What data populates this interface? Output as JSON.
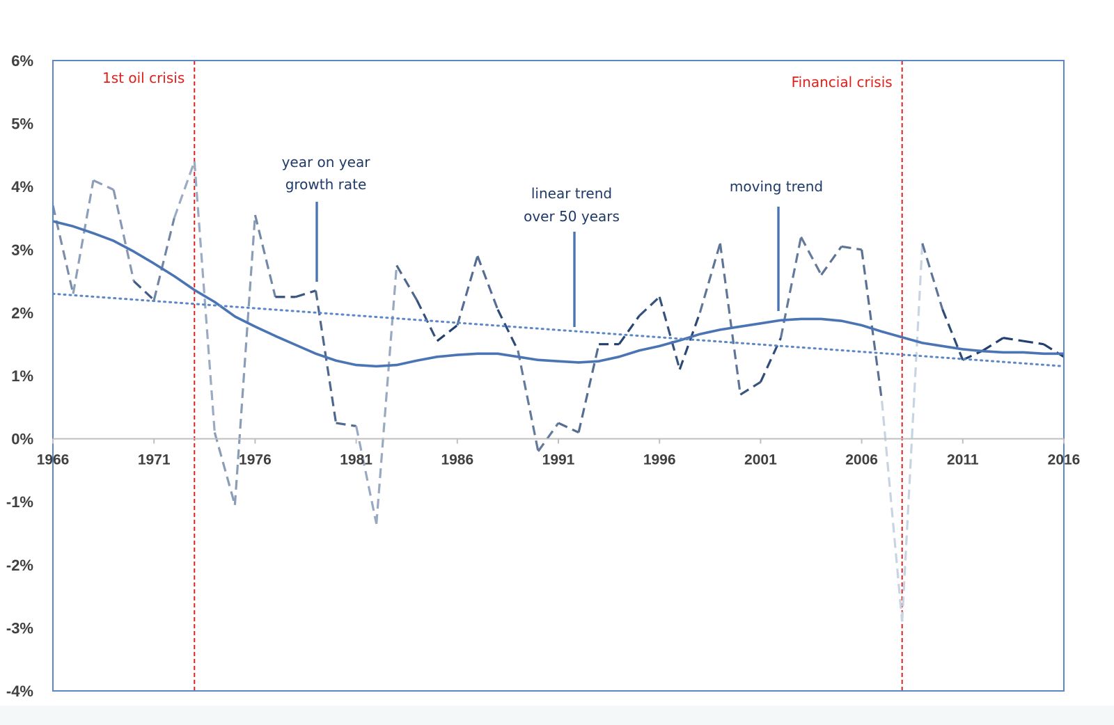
{
  "chart_data": {
    "type": "line",
    "title": "",
    "xlabel": "",
    "ylabel": "",
    "xlim": [
      1966,
      2016
    ],
    "ylim": [
      -4,
      6
    ],
    "x_ticks": [
      "1966",
      "1971",
      "1976",
      "1981",
      "1986",
      "1991",
      "1996",
      "2001",
      "2006",
      "2011",
      "2016"
    ],
    "y_ticks": [
      "6%",
      "5%",
      "4%",
      "3%",
      "2%",
      "1%",
      "0%",
      "-1%",
      "-2%",
      "-3%",
      "-4%"
    ],
    "series": [
      {
        "name": "year on year growth rate",
        "style": "dashed, color graded from light to dark",
        "x": [
          1966,
          1967,
          1968,
          1969,
          1970,
          1971,
          1972,
          1973,
          1974,
          1975,
          1976,
          1977,
          1978,
          1979,
          1980,
          1981,
          1982,
          1983,
          1984,
          1985,
          1986,
          1987,
          1988,
          1989,
          1990,
          1991,
          1992,
          1993,
          1994,
          1995,
          1996,
          1997,
          1998,
          1999,
          2000,
          2001,
          2002,
          2003,
          2004,
          2005,
          2006,
          2007,
          2008,
          2009,
          2010,
          2011,
          2012,
          2013,
          2014,
          2015,
          2016
        ],
        "y": [
          3.7,
          2.3,
          4.1,
          3.95,
          2.5,
          2.2,
          3.5,
          4.4,
          0.1,
          -1.05,
          3.55,
          2.25,
          2.25,
          2.35,
          0.25,
          0.2,
          -1.35,
          2.75,
          2.2,
          1.55,
          1.8,
          2.9,
          2.05,
          1.4,
          -0.2,
          0.25,
          0.1,
          1.5,
          1.5,
          1.95,
          2.25,
          1.1,
          2.0,
          3.1,
          0.7,
          0.9,
          1.6,
          3.2,
          2.6,
          3.05,
          3.0,
          0.6,
          -2.9,
          3.1,
          2.05,
          1.25,
          1.4,
          1.6,
          1.55,
          1.5,
          1.3
        ]
      },
      {
        "name": "moving trend",
        "style": "solid",
        "x": [
          1966,
          1967,
          1968,
          1969,
          1970,
          1971,
          1972,
          1973,
          1974,
          1975,
          1976,
          1977,
          1978,
          1979,
          1980,
          1981,
          1982,
          1983,
          1984,
          1985,
          1986,
          1987,
          1988,
          1989,
          1990,
          1991,
          1992,
          1993,
          1994,
          1995,
          1996,
          1997,
          1998,
          1999,
          2000,
          2001,
          2002,
          2003,
          2004,
          2005,
          2006,
          2007,
          2008,
          2009,
          2010,
          2011,
          2012,
          2013,
          2014,
          2015,
          2016
        ],
        "y": [
          3.45,
          3.37,
          3.26,
          3.14,
          2.97,
          2.78,
          2.58,
          2.36,
          2.17,
          1.94,
          1.78,
          1.63,
          1.49,
          1.35,
          1.24,
          1.17,
          1.15,
          1.17,
          1.24,
          1.3,
          1.33,
          1.35,
          1.35,
          1.3,
          1.25,
          1.23,
          1.21,
          1.23,
          1.3,
          1.4,
          1.47,
          1.56,
          1.66,
          1.73,
          1.78,
          1.83,
          1.88,
          1.9,
          1.9,
          1.87,
          1.8,
          1.7,
          1.61,
          1.52,
          1.47,
          1.42,
          1.39,
          1.37,
          1.37,
          1.35,
          1.35
        ]
      },
      {
        "name": "linear trend over 50 years",
        "style": "dotted",
        "x": [
          1966,
          2016
        ],
        "y": [
          2.3,
          1.15
        ]
      }
    ],
    "events": [
      {
        "label": "1st oil crisis",
        "x": 1973
      },
      {
        "label": "Financial crisis",
        "x": 2008
      }
    ],
    "annotations": [
      {
        "lines": [
          "year on year",
          "growth rate"
        ],
        "target": "year on year growth rate",
        "at_x": 1979,
        "at_y": 2.5
      },
      {
        "lines": [
          "linear trend",
          "over  50 years"
        ],
        "target": "linear trend over 50 years",
        "at_x": 1991.7,
        "at_y": 1.75
      },
      {
        "lines": [
          "moving trend"
        ],
        "target": "moving trend",
        "at_x": 2002,
        "at_y": 2.05
      }
    ],
    "colors": {
      "dashed_light": "#c9d4e3",
      "dashed_dark": "#22406e",
      "solid_line": "#4a74b4",
      "dotted_line": "#5b87c5",
      "event_line": "#e0201c",
      "frame": "#5b87c5",
      "annotation_text": "#1f3a68",
      "event_text": "#e0201c",
      "tick_text": "#404040"
    }
  }
}
